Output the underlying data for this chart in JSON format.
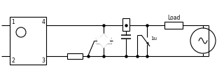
{
  "bg_color": "#ffffff",
  "line_color": "#000000",
  "lw": 0.8,
  "fig_width": 3.1,
  "fig_height": 1.15,
  "dpi": 100,
  "label_load": "Load",
  "label_1u": "1u",
  "fs_pin": 5.5,
  "fs_load": 5.5
}
